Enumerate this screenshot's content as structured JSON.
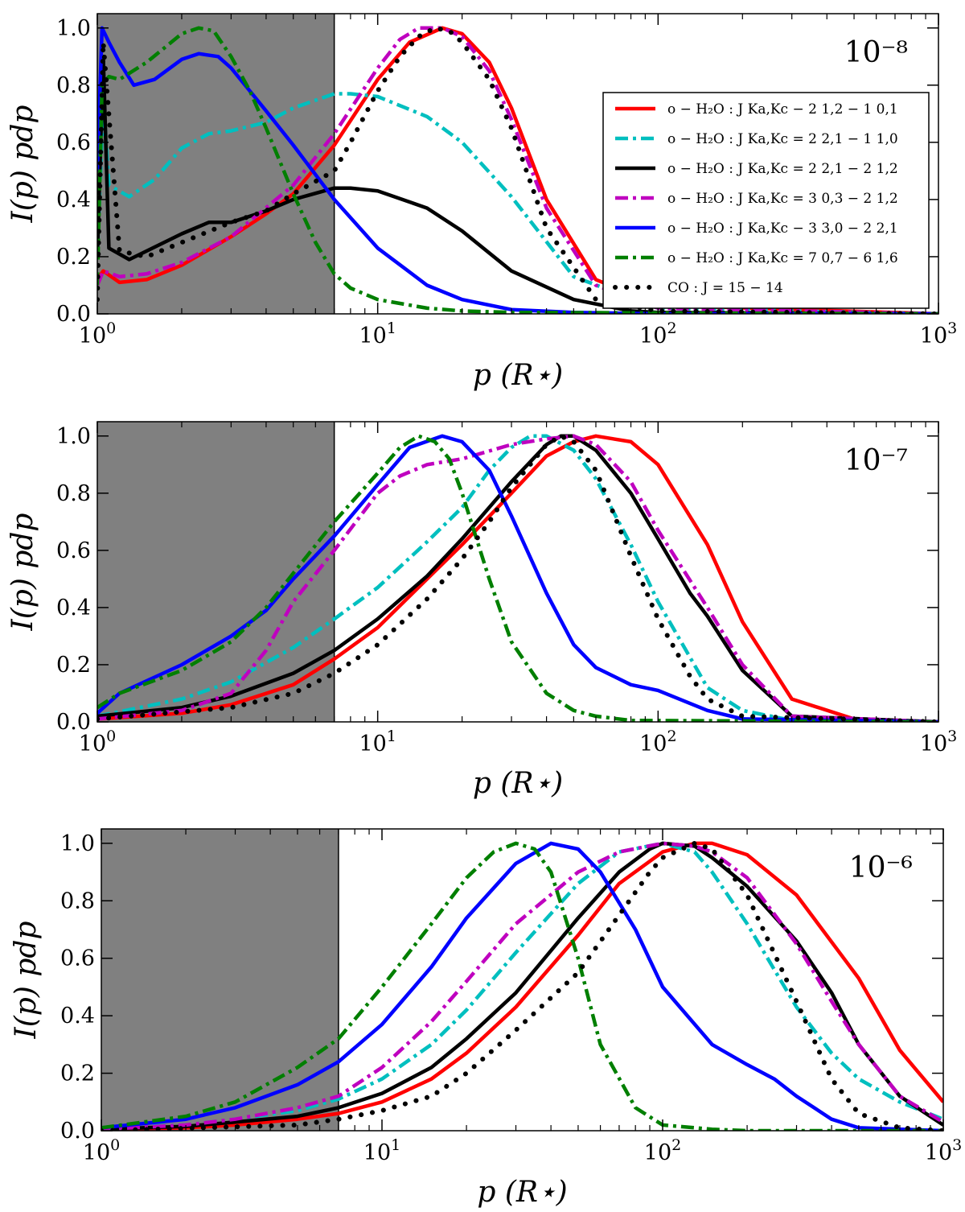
{
  "figure": {
    "xlabel": "p (R⋆)",
    "ylabel": "I(p) pdp",
    "ytick_labels": [
      "0.0",
      "0.2",
      "0.4",
      "0.6",
      "0.8",
      "1.0"
    ],
    "xtick_labels": [
      {
        "base": "10",
        "exp": "0"
      },
      {
        "base": "10",
        "exp": "1"
      },
      {
        "base": "10",
        "exp": "2"
      },
      {
        "base": "10",
        "exp": "3"
      }
    ]
  },
  "legend": [
    {
      "label": "o − H₂O : J Ka,Kc − 2 1,2 − 1 0,1",
      "color": "#ff0000",
      "style": "solid"
    },
    {
      "label": "o − H₂O : J Ka,Kc = 2 2,1 − 1 1,0",
      "color": "#00bfbf",
      "style": "dashdot"
    },
    {
      "label": "o − H₂O : J Ka,Kc = 2 2,1 − 2 1,2",
      "color": "#000000",
      "style": "solid"
    },
    {
      "label": "o − H₂O : J Ka,Kc = 3 0,3 − 2 1,2",
      "color": "#bf00bf",
      "style": "dashdot"
    },
    {
      "label": "o − H₂O : J Ka,Kc − 3 3,0 − 2 2,1",
      "color": "#0000ff",
      "style": "solid"
    },
    {
      "label": "o − H₂O : J Ka,Kc = 7 0,7 − 6 1,6",
      "color": "#007f00",
      "style": "dashdot"
    },
    {
      "label": "CO : J = 15 − 14",
      "color": "#000000",
      "style": "dotted"
    }
  ],
  "chart_data": [
    {
      "type": "line",
      "panel_label": "10⁻⁸",
      "xscale": "log",
      "xlim": [
        1,
        1000
      ],
      "ylim": [
        0,
        1.05
      ],
      "xlabel": "p (R⋆)",
      "ylabel": "I(p) pdp",
      "shaded_region": [
        1,
        7
      ],
      "series": [
        {
          "name": "o-H2O 2_12-1_01",
          "x": [
            1,
            1.05,
            1.2,
            1.5,
            2,
            3,
            4,
            5,
            7,
            10,
            13,
            17,
            20,
            25,
            30,
            40,
            60,
            100,
            1000
          ],
          "y": [
            0.12,
            0.15,
            0.11,
            0.12,
            0.17,
            0.27,
            0.35,
            0.42,
            0.59,
            0.82,
            0.95,
            1.0,
            0.98,
            0.88,
            0.72,
            0.4,
            0.12,
            0.03,
            0.0
          ]
        },
        {
          "name": "o-H2O 2_21-1_10",
          "x": [
            1,
            1.05,
            1.1,
            1.3,
            1.6,
            2,
            2.5,
            3,
            4,
            5,
            7,
            8,
            10,
            15,
            20,
            30,
            50,
            100,
            1000
          ],
          "y": [
            0.2,
            0.75,
            0.45,
            0.41,
            0.47,
            0.58,
            0.63,
            0.64,
            0.67,
            0.72,
            0.77,
            0.77,
            0.76,
            0.69,
            0.6,
            0.41,
            0.13,
            0.02,
            0.0
          ]
        },
        {
          "name": "o-H2O 2_21-2_12",
          "x": [
            1,
            1.05,
            1.1,
            1.3,
            2,
            2.5,
            3,
            4,
            5,
            7,
            8,
            10,
            15,
            20,
            30,
            50,
            80,
            100,
            1000
          ],
          "y": [
            0.2,
            0.9,
            0.23,
            0.19,
            0.28,
            0.32,
            0.32,
            0.36,
            0.4,
            0.44,
            0.44,
            0.43,
            0.37,
            0.29,
            0.15,
            0.05,
            0.01,
            0.005,
            0.0
          ]
        },
        {
          "name": "o-H2O 3_03-2_12",
          "x": [
            1,
            1.05,
            1.2,
            1.5,
            2,
            3,
            5,
            7,
            10,
            12,
            14,
            17,
            20,
            25,
            30,
            40,
            60,
            100,
            1000
          ],
          "y": [
            0.1,
            0.15,
            0.13,
            0.14,
            0.18,
            0.27,
            0.45,
            0.63,
            0.86,
            0.96,
            1.0,
            1.0,
            0.97,
            0.85,
            0.68,
            0.37,
            0.1,
            0.02,
            0.0
          ]
        },
        {
          "name": "o-H2O 3_30-2_21",
          "x": [
            1,
            1.04,
            1.1,
            1.2,
            1.35,
            1.6,
            2,
            2.3,
            2.7,
            3,
            4,
            5,
            7,
            10,
            15,
            20,
            30,
            50,
            100,
            1000
          ],
          "y": [
            0.5,
            1.0,
            0.95,
            0.88,
            0.8,
            0.82,
            0.89,
            0.91,
            0.9,
            0.86,
            0.71,
            0.59,
            0.4,
            0.23,
            0.1,
            0.05,
            0.015,
            0.005,
            0.0,
            0.0
          ]
        },
        {
          "name": "o-H2O 7_07-6_16",
          "x": [
            1,
            1.04,
            1.1,
            1.2,
            1.5,
            2,
            2.3,
            2.6,
            3,
            3.5,
            4,
            5,
            6,
            7,
            8,
            10,
            15,
            20,
            30,
            1000
          ],
          "y": [
            0.1,
            0.8,
            0.83,
            0.82,
            0.88,
            0.98,
            1.0,
            0.99,
            0.9,
            0.78,
            0.65,
            0.42,
            0.25,
            0.14,
            0.09,
            0.05,
            0.02,
            0.01,
            0.005,
            0.0
          ]
        },
        {
          "name": "CO 15-14",
          "x": [
            1,
            1.05,
            1.2,
            1.5,
            2,
            3,
            4,
            5,
            7,
            8,
            10,
            12,
            14,
            16,
            18,
            20,
            25,
            30,
            40,
            60,
            100,
            1000
          ],
          "y": [
            0.05,
            0.95,
            0.22,
            0.2,
            0.25,
            0.32,
            0.36,
            0.42,
            0.5,
            0.6,
            0.78,
            0.9,
            0.97,
            1.0,
            0.99,
            0.95,
            0.82,
            0.65,
            0.3,
            0.05,
            0.01,
            0.0
          ]
        }
      ]
    },
    {
      "type": "line",
      "panel_label": "10⁻⁷",
      "xscale": "log",
      "xlim": [
        1,
        1000
      ],
      "ylim": [
        0,
        1.05
      ],
      "xlabel": "p (R⋆)",
      "ylabel": "I(p) pdp",
      "shaded_region": [
        1,
        7
      ],
      "series": [
        {
          "name": "o-H2O 2_12-1_01",
          "x": [
            1,
            2,
            3,
            5,
            7,
            10,
            15,
            20,
            30,
            40,
            50,
            60,
            80,
            100,
            150,
            200,
            300,
            500,
            1000
          ],
          "y": [
            0.01,
            0.03,
            0.06,
            0.13,
            0.22,
            0.33,
            0.5,
            0.62,
            0.8,
            0.93,
            0.98,
            1.0,
            0.98,
            0.9,
            0.62,
            0.35,
            0.08,
            0.01,
            0.0
          ]
        },
        {
          "name": "o-H2O 2_21-1_10",
          "x": [
            1,
            2,
            3,
            5,
            7,
            10,
            15,
            20,
            25,
            30,
            35,
            40,
            50,
            60,
            80,
            100,
            150,
            200,
            300,
            1000
          ],
          "y": [
            0.02,
            0.08,
            0.14,
            0.26,
            0.36,
            0.47,
            0.63,
            0.75,
            0.88,
            0.96,
            1.0,
            1.0,
            0.95,
            0.85,
            0.62,
            0.42,
            0.12,
            0.04,
            0.005,
            0.0
          ]
        },
        {
          "name": "o-H2O 2_21-2_12",
          "x": [
            1,
            2,
            3,
            5,
            7,
            10,
            15,
            20,
            30,
            40,
            45,
            50,
            60,
            80,
            100,
            130,
            150,
            200,
            300,
            1000
          ],
          "y": [
            0.02,
            0.05,
            0.09,
            0.17,
            0.25,
            0.36,
            0.51,
            0.64,
            0.84,
            0.97,
            1.0,
            1.0,
            0.95,
            0.8,
            0.64,
            0.45,
            0.37,
            0.18,
            0.02,
            0.0
          ]
        },
        {
          "name": "o-H2O 3_03-2_12",
          "x": [
            1,
            2,
            3,
            4,
            5,
            7,
            10,
            12,
            15,
            20,
            30,
            40,
            50,
            60,
            80,
            100,
            150,
            200,
            300,
            1000
          ],
          "y": [
            0.01,
            0.04,
            0.1,
            0.25,
            0.42,
            0.6,
            0.8,
            0.86,
            0.9,
            0.92,
            0.97,
            0.99,
            1.0,
            0.97,
            0.84,
            0.67,
            0.4,
            0.2,
            0.02,
            0.0
          ]
        },
        {
          "name": "o-H2O 3_30-2_21",
          "x": [
            1,
            1.2,
            2,
            3,
            4,
            5,
            7,
            10,
            13,
            17,
            20,
            25,
            30,
            40,
            50,
            60,
            80,
            100,
            150,
            200,
            1000
          ],
          "y": [
            0.03,
            0.1,
            0.2,
            0.3,
            0.39,
            0.5,
            0.65,
            0.83,
            0.96,
            1.0,
            0.98,
            0.88,
            0.72,
            0.45,
            0.27,
            0.19,
            0.13,
            0.11,
            0.04,
            0.01,
            0.0
          ]
        },
        {
          "name": "o-H2O 7_07-6_16",
          "x": [
            1,
            1.2,
            2,
            3,
            4,
            5,
            7,
            10,
            12,
            14,
            16,
            18,
            20,
            25,
            30,
            40,
            50,
            60,
            80,
            1000
          ],
          "y": [
            0.05,
            0.1,
            0.18,
            0.28,
            0.4,
            0.52,
            0.7,
            0.87,
            0.96,
            1.0,
            0.98,
            0.92,
            0.8,
            0.5,
            0.28,
            0.1,
            0.04,
            0.02,
            0.005,
            0.0
          ]
        },
        {
          "name": "CO 15-14",
          "x": [
            1,
            3,
            5,
            7,
            10,
            15,
            20,
            25,
            30,
            40,
            45,
            50,
            60,
            70,
            80,
            100,
            130,
            150,
            200,
            1000
          ],
          "y": [
            0.01,
            0.05,
            0.1,
            0.17,
            0.27,
            0.43,
            0.57,
            0.7,
            0.82,
            0.97,
            1.0,
            0.98,
            0.88,
            0.72,
            0.58,
            0.36,
            0.16,
            0.08,
            0.02,
            0.0
          ]
        }
      ]
    },
    {
      "type": "line",
      "panel_label": "10⁻⁶",
      "xscale": "log",
      "xlim": [
        1,
        1000
      ],
      "ylim": [
        0,
        1.05
      ],
      "xlabel": "p (R⋆)",
      "ylabel": "I(p) pdp",
      "shaded_region": [
        1,
        7
      ],
      "series": [
        {
          "name": "o-H2O 2_12-1_01",
          "x": [
            1,
            2,
            3,
            5,
            7,
            10,
            15,
            20,
            30,
            50,
            70,
            100,
            130,
            150,
            200,
            300,
            500,
            700,
            1000
          ],
          "y": [
            0.005,
            0.01,
            0.02,
            0.04,
            0.06,
            0.1,
            0.18,
            0.27,
            0.43,
            0.68,
            0.86,
            0.97,
            1.0,
            1.0,
            0.96,
            0.82,
            0.53,
            0.28,
            0.1
          ]
        },
        {
          "name": "o-H2O 2_21-1_10",
          "x": [
            1,
            2,
            3,
            5,
            7,
            10,
            15,
            20,
            30,
            50,
            70,
            100,
            130,
            150,
            200,
            300,
            400,
            500,
            700,
            1000
          ],
          "y": [
            0.01,
            0.02,
            0.04,
            0.07,
            0.11,
            0.18,
            0.3,
            0.42,
            0.62,
            0.86,
            0.97,
            1.0,
            0.97,
            0.9,
            0.72,
            0.43,
            0.27,
            0.18,
            0.1,
            0.04
          ]
        },
        {
          "name": "o-H2O 2_21-2_12",
          "x": [
            1,
            2,
            3,
            5,
            7,
            10,
            15,
            20,
            30,
            50,
            70,
            90,
            100,
            130,
            150,
            200,
            300,
            400,
            500,
            700,
            1000
          ],
          "y": [
            0.005,
            0.015,
            0.03,
            0.05,
            0.08,
            0.13,
            0.22,
            0.32,
            0.48,
            0.74,
            0.9,
            0.98,
            1.0,
            0.99,
            0.95,
            0.85,
            0.66,
            0.48,
            0.3,
            0.12,
            0.02
          ]
        },
        {
          "name": "o-H2O 3_03-2_12",
          "x": [
            1,
            2,
            3,
            5,
            7,
            10,
            15,
            20,
            30,
            50,
            70,
            100,
            130,
            150,
            200,
            300,
            400,
            500,
            700,
            1000
          ],
          "y": [
            0.005,
            0.02,
            0.04,
            0.08,
            0.12,
            0.22,
            0.38,
            0.52,
            0.72,
            0.9,
            0.97,
            1.0,
            0.99,
            0.97,
            0.88,
            0.65,
            0.45,
            0.3,
            0.12,
            0.03
          ]
        },
        {
          "name": "o-H2O 3_30-2_21",
          "x": [
            1,
            2,
            3,
            5,
            7,
            10,
            15,
            20,
            30,
            40,
            50,
            60,
            80,
            100,
            150,
            200,
            250,
            300,
            400,
            500,
            1000
          ],
          "y": [
            0.01,
            0.04,
            0.08,
            0.16,
            0.24,
            0.37,
            0.57,
            0.74,
            0.93,
            1.0,
            0.98,
            0.9,
            0.7,
            0.5,
            0.3,
            0.23,
            0.18,
            0.12,
            0.04,
            0.01,
            0.0
          ]
        },
        {
          "name": "o-H2O 7_07-6_16",
          "x": [
            1,
            2,
            3,
            5,
            7,
            10,
            15,
            20,
            25,
            30,
            35,
            40,
            50,
            60,
            80,
            100,
            150,
            200,
            1000
          ],
          "y": [
            0.01,
            0.05,
            0.1,
            0.22,
            0.32,
            0.5,
            0.72,
            0.88,
            0.97,
            1.0,
            0.98,
            0.9,
            0.6,
            0.3,
            0.08,
            0.02,
            0.005,
            0.0,
            0.0
          ]
        },
        {
          "name": "CO 15-14",
          "x": [
            1,
            5,
            7,
            10,
            15,
            20,
            30,
            50,
            70,
            90,
            100,
            130,
            150,
            200,
            300,
            400,
            500,
            700,
            1000
          ],
          "y": [
            0.0,
            0.02,
            0.04,
            0.07,
            0.12,
            0.2,
            0.35,
            0.55,
            0.75,
            0.9,
            0.95,
            1.0,
            0.98,
            0.82,
            0.45,
            0.18,
            0.06,
            0.01,
            0.0
          ]
        }
      ]
    }
  ]
}
